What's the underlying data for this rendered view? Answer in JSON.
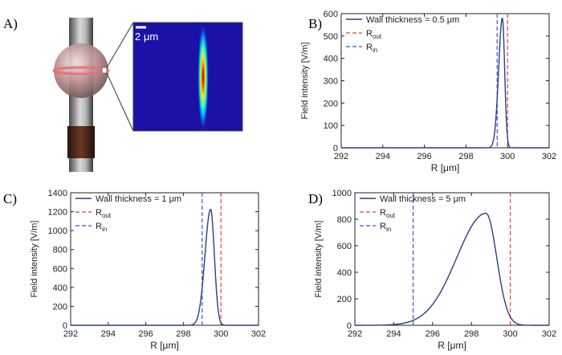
{
  "panels": {
    "a": {
      "label": "A)",
      "scalebar": "2 μm"
    },
    "b": {
      "label": "B)"
    },
    "c": {
      "label": "C)"
    },
    "d": {
      "label": "D)"
    }
  },
  "colors": {
    "curve": "#2b3f7f",
    "r_out": "#e8403f",
    "r_in": "#3a4fd8",
    "heatmap_bg": "#1b12a5",
    "resonator_ring": "#e87070"
  },
  "chart_data": [
    {
      "id": "b",
      "type": "line",
      "xlabel": "R [μm]",
      "ylabel": "Field intensity [V/m]",
      "xlim": [
        292,
        302
      ],
      "ylim": [
        0,
        600
      ],
      "xticks": [
        292,
        294,
        296,
        298,
        300,
        302
      ],
      "yticks": [
        0,
        100,
        200,
        300,
        400,
        500,
        600
      ],
      "legend": [
        "Wall thickness = 0.5 μm",
        "R",
        "out",
        "R",
        "in"
      ],
      "legend_position": "top-left",
      "r_out": 300,
      "r_in": 299.5,
      "peak": {
        "x": 299.75,
        "y": 580
      },
      "sigma_left": 0.18,
      "sigma_right": 0.11
    },
    {
      "id": "c",
      "type": "line",
      "xlabel": "R [μm]",
      "ylabel": "Field intensity [V/m]",
      "xlim": [
        292,
        302
      ],
      "ylim": [
        0,
        1400
      ],
      "xticks": [
        292,
        294,
        296,
        298,
        300,
        302
      ],
      "yticks": [
        0,
        200,
        400,
        600,
        800,
        1000,
        1200,
        1400
      ],
      "legend": [
        "Wall thickness = 1 μm",
        "R",
        "out",
        "R",
        "in"
      ],
      "legend_position": "top-left",
      "r_out": 300,
      "r_in": 299,
      "peak": {
        "x": 299.45,
        "y": 1225
      },
      "sigma_left": 0.3,
      "sigma_right": 0.2
    },
    {
      "id": "d",
      "type": "line",
      "xlabel": "R [μm]",
      "ylabel": "Field intensity [V/m]",
      "xlim": [
        292,
        302
      ],
      "ylim": [
        0,
        1000
      ],
      "xticks": [
        292,
        294,
        296,
        298,
        300,
        302
      ],
      "yticks": [
        0,
        200,
        400,
        600,
        800,
        1000
      ],
      "legend": [
        "Wall thickness = 5 μm",
        "R",
        "out",
        "R",
        "in"
      ],
      "legend_position": "top-left",
      "r_out": 300,
      "r_in": 295,
      "peak": {
        "x": 298.75,
        "y": 845
      },
      "sigma_left": 1.5,
      "sigma_right": 0.55
    }
  ]
}
